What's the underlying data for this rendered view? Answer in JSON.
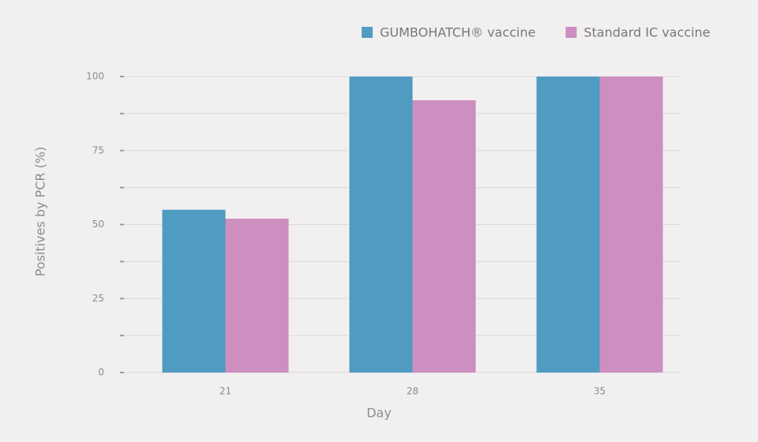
{
  "chart_data": {
    "type": "bar",
    "x_label": "Day",
    "y_label": "Positives by PCR (%)",
    "categories": [
      "21",
      "28",
      "35"
    ],
    "series": [
      {
        "name": "GUMBOHATCH® vaccine",
        "color": "#4f9bc1",
        "values": [
          55,
          100,
          100
        ]
      },
      {
        "name": "Standard IC vaccine",
        "color": "#cc8fbf",
        "values": [
          52,
          92,
          100
        ]
      }
    ],
    "ylim": [
      0,
      100
    ],
    "yticks": [
      0,
      25,
      50,
      75,
      100
    ],
    "minor_yticks": [
      12.5,
      37.5,
      62.5,
      87.5
    ],
    "grid": true,
    "legend": "top-right"
  }
}
